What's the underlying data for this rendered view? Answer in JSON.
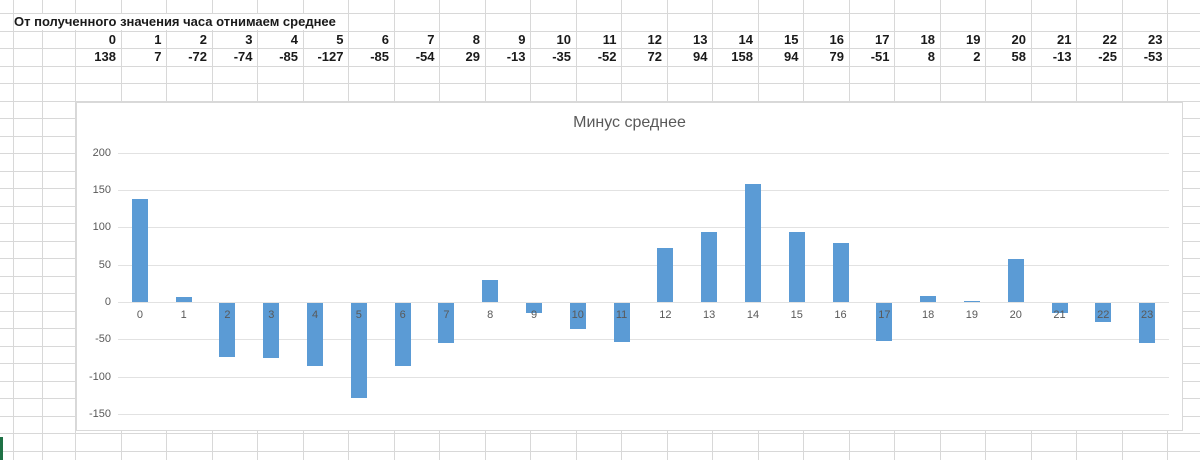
{
  "sheet": {
    "caption": "От полученного значения часа отнимаем среднее"
  },
  "chart_data": {
    "type": "bar",
    "title": "Минус среднее",
    "categories": [
      "0",
      "1",
      "2",
      "3",
      "4",
      "5",
      "6",
      "7",
      "8",
      "9",
      "10",
      "11",
      "12",
      "13",
      "14",
      "15",
      "16",
      "17",
      "18",
      "19",
      "20",
      "21",
      "22",
      "23"
    ],
    "values": [
      138,
      7,
      -72,
      -74,
      -85,
      -127,
      -85,
      -54,
      29,
      -13,
      -35,
      -52,
      72,
      94,
      158,
      94,
      79,
      -51,
      8,
      2,
      58,
      -13,
      -25,
      -53
    ],
    "xlabel": "",
    "ylabel": "",
    "ylim": [
      -150,
      200
    ],
    "yticks": [
      200,
      150,
      100,
      50,
      0,
      -50,
      -100,
      -150
    ],
    "grid": true,
    "legend": false,
    "bar_color": "#5b9bd5",
    "gridline_color": "#e2e2e2",
    "tick_label_color": "#595959",
    "title_color": "#595959"
  },
  "colors": {
    "sheet_gridline": "#d8d8d8",
    "selection_accent": "#1e7145"
  }
}
